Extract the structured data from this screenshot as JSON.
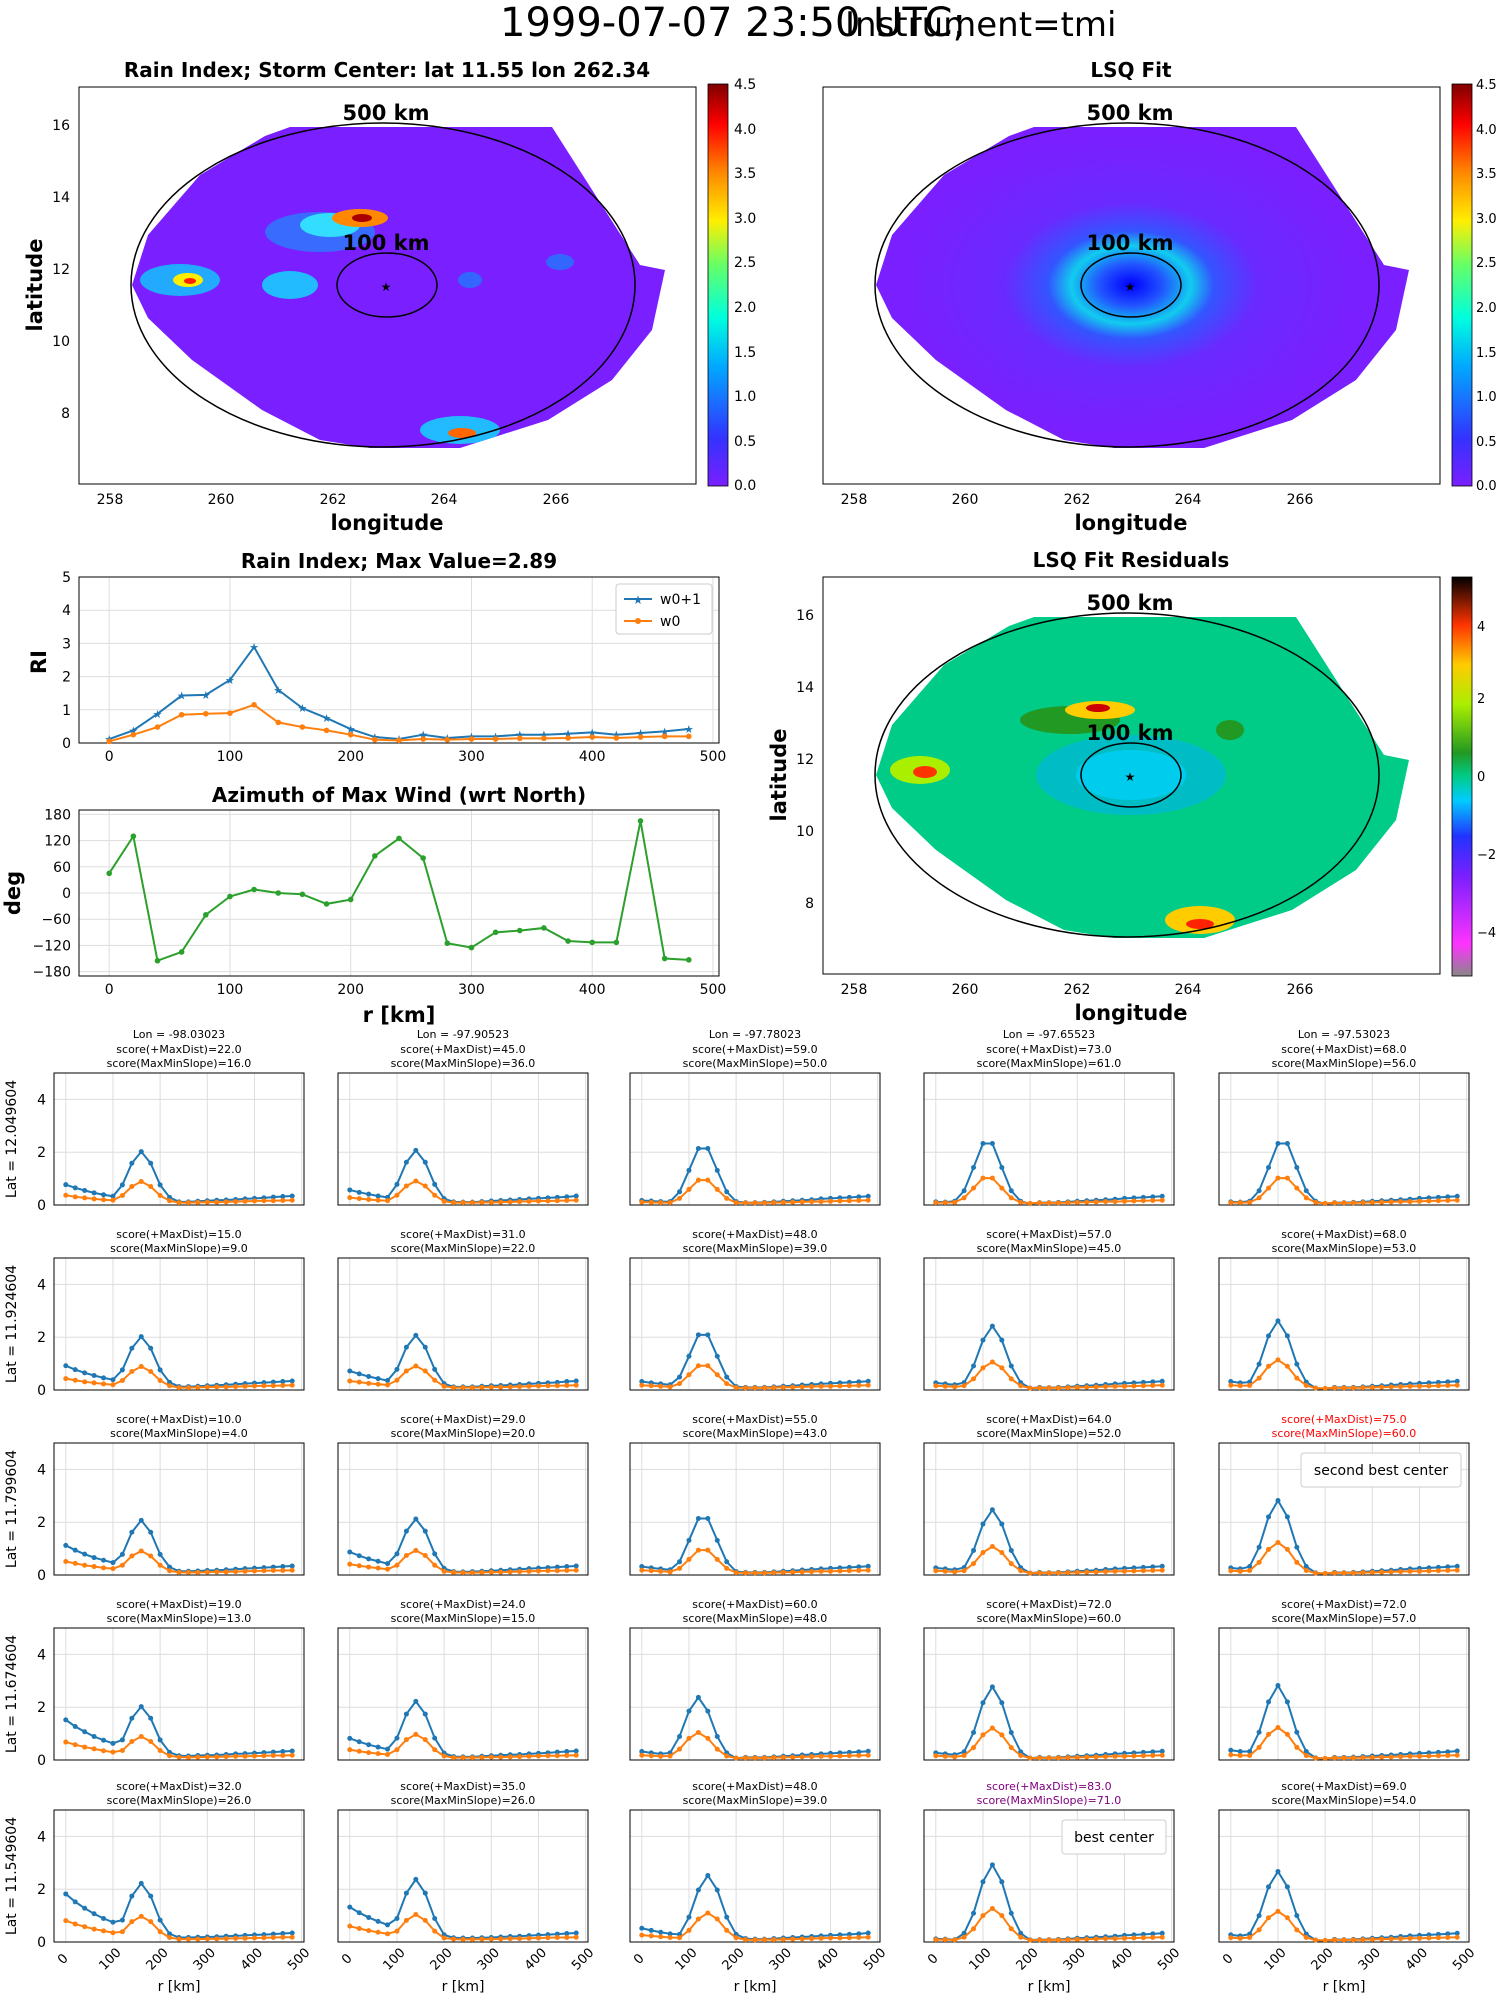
{
  "title_main": "1999-07-07 23:50 UTC;",
  "title_instrument": "Instrument=tmi",
  "colors": {
    "w0p1": "#1f77b4",
    "w0": "#ff7f0e",
    "azimuth": "#2ca02c",
    "highlight_red": "#ff0000",
    "highlight_purple": "#800080",
    "field": "#7a1fff",
    "ring": "#000000"
  },
  "maps": {
    "rain": {
      "title": "Rain Index; Storm Center: lat 11.55 lon 262.34",
      "xlabel": "longitude",
      "ylabel": "latitude",
      "xticks": [
        "258",
        "260",
        "262",
        "264",
        "266"
      ],
      "yticks": [
        "8",
        "10",
        "12",
        "14",
        "16"
      ],
      "ring_labels": [
        "500 km",
        "100 km"
      ],
      "colorbar_ticks": [
        "0.0",
        "0.5",
        "1.0",
        "1.5",
        "2.0",
        "2.5",
        "3.0",
        "3.5",
        "4.0",
        "4.5"
      ]
    },
    "lsq": {
      "title": "LSQ Fit",
      "xlabel": "longitude",
      "xticks": [
        "258",
        "260",
        "262",
        "264",
        "266"
      ],
      "ring_labels": [
        "500 km",
        "100 km"
      ],
      "colorbar_ticks": [
        "0.0",
        "0.5",
        "1.0",
        "1.5",
        "2.0",
        "2.5",
        "3.0",
        "3.5",
        "4.0",
        "4.5"
      ]
    },
    "resid": {
      "title": "LSQ Fit Residuals",
      "xlabel": "longitude",
      "ylabel": "latitude",
      "xticks": [
        "258",
        "260",
        "262",
        "264",
        "266"
      ],
      "yticks": [
        "8",
        "10",
        "12",
        "14",
        "16"
      ],
      "ring_labels": [
        "500 km",
        "100 km"
      ],
      "colorbar_ticks": [
        "4",
        "2",
        "0",
        "−2",
        "−4"
      ]
    }
  },
  "chart_data": [
    {
      "type": "line",
      "title": "Rain Index; Max Value=2.89",
      "ylabel": "RI",
      "xlim": [
        -25,
        505
      ],
      "ylim": [
        0,
        5
      ],
      "xticks": [
        "0",
        "100",
        "200",
        "300",
        "400",
        "500"
      ],
      "yticks": [
        "0",
        "1",
        "2",
        "3",
        "4",
        "5"
      ],
      "legend": "top-right",
      "x": [
        0,
        20,
        40,
        60,
        80,
        100,
        120,
        140,
        160,
        180,
        200,
        220,
        240,
        260,
        280,
        300,
        320,
        340,
        360,
        380,
        400,
        420,
        440,
        460,
        480
      ],
      "series": [
        {
          "name": "w0+1",
          "values": [
            0.12,
            0.38,
            0.88,
            1.43,
            1.45,
            1.9,
            2.89,
            1.6,
            1.05,
            0.75,
            0.42,
            0.18,
            0.12,
            0.25,
            0.15,
            0.2,
            0.2,
            0.25,
            0.25,
            0.28,
            0.32,
            0.25,
            0.3,
            0.35,
            0.42
          ]
        },
        {
          "name": "w0",
          "values": [
            0.05,
            0.25,
            0.48,
            0.85,
            0.88,
            0.9,
            1.15,
            0.62,
            0.48,
            0.38,
            0.25,
            0.1,
            0.08,
            0.12,
            0.1,
            0.12,
            0.12,
            0.14,
            0.14,
            0.15,
            0.18,
            0.15,
            0.18,
            0.2,
            0.2
          ]
        }
      ]
    },
    {
      "type": "line",
      "title": "Azimuth of Max Wind (wrt North)",
      "xlabel": "r [km]",
      "ylabel": "deg",
      "xlim": [
        -25,
        505
      ],
      "ylim": [
        -190,
        190
      ],
      "xticks": [
        "0",
        "100",
        "200",
        "300",
        "400",
        "500"
      ],
      "yticks": [
        "180",
        "120",
        "60",
        "0",
        "−60",
        "−120",
        "−180"
      ],
      "x": [
        0,
        20,
        40,
        60,
        80,
        100,
        120,
        140,
        160,
        180,
        200,
        220,
        240,
        260,
        280,
        300,
        320,
        340,
        360,
        380,
        400,
        420,
        440,
        460,
        480
      ],
      "values": [
        45,
        130,
        -155,
        -135,
        -50,
        -8,
        8,
        0,
        -3,
        -25,
        -15,
        85,
        125,
        80,
        -115,
        -125,
        -90,
        -86,
        -80,
        -110,
        -113,
        -113,
        165,
        -150,
        -153
      ]
    },
    {
      "type": "line",
      "grid": "5x5 small multiples",
      "xlabel": "r [km]",
      "xticks": [
        "0",
        "100",
        "200",
        "300",
        "400",
        "500"
      ],
      "yticks": [
        "0",
        "2",
        "4"
      ],
      "ylim": [
        0,
        5
      ],
      "columns_lon": [
        "Lon = -98.03023",
        "Lon = -97.90523",
        "Lon = -97.78023",
        "Lon = -97.65523",
        "Lon = -97.53023"
      ],
      "rows_lat": [
        "Lat = 12.049604",
        "Lat = 11.924604",
        "Lat = 11.799604",
        "Lat = 11.674604",
        "Lat = 11.549604"
      ],
      "x": [
        0,
        20,
        40,
        60,
        80,
        100,
        120,
        140,
        160,
        180,
        200,
        220,
        240,
        260,
        280,
        300,
        320,
        340,
        360,
        380,
        400,
        420,
        440,
        460,
        480
      ],
      "panels": [
        [
          {
            "s1": "score(+MaxDist)=22.0",
            "s2": "score(MaxMinSlope)=16.0",
            "peak": 2.0,
            "pos": 160,
            "base": 0.75
          },
          {
            "s1": "score(+MaxDist)=45.0",
            "s2": "score(MaxMinSlope)=36.0",
            "peak": 2.05,
            "pos": 140,
            "base": 0.55
          },
          {
            "s1": "score(+MaxDist)=59.0",
            "s2": "score(MaxMinSlope)=50.0",
            "peak": 2.25,
            "pos": 130,
            "base": 0.15
          },
          {
            "s1": "score(+MaxDist)=73.0",
            "s2": "score(MaxMinSlope)=61.0",
            "peak": 2.45,
            "pos": 110,
            "base": 0.1
          },
          {
            "s1": "score(+MaxDist)=68.0",
            "s2": "score(MaxMinSlope)=56.0",
            "peak": 2.45,
            "pos": 110,
            "base": 0.1
          }
        ],
        [
          {
            "s1": "score(+MaxDist)=15.0",
            "s2": "score(MaxMinSlope)=9.0",
            "peak": 2.0,
            "pos": 160,
            "base": 0.9
          },
          {
            "s1": "score(+MaxDist)=31.0",
            "s2": "score(MaxMinSlope)=22.0",
            "peak": 2.05,
            "pos": 140,
            "base": 0.7
          },
          {
            "s1": "score(+MaxDist)=48.0",
            "s2": "score(MaxMinSlope)=39.0",
            "peak": 2.2,
            "pos": 130,
            "base": 0.3
          },
          {
            "s1": "score(+MaxDist)=57.0",
            "s2": "score(MaxMinSlope)=45.0",
            "peak": 2.4,
            "pos": 120,
            "base": 0.25
          },
          {
            "s1": "score(+MaxDist)=68.0",
            "s2": "score(MaxMinSlope)=53.0",
            "peak": 2.6,
            "pos": 100,
            "base": 0.3
          }
        ],
        [
          {
            "s1": "score(+MaxDist)=10.0",
            "s2": "score(MaxMinSlope)=4.0",
            "peak": 2.05,
            "pos": 160,
            "base": 1.1
          },
          {
            "s1": "score(+MaxDist)=29.0",
            "s2": "score(MaxMinSlope)=20.0",
            "peak": 2.1,
            "pos": 140,
            "base": 0.85
          },
          {
            "s1": "score(+MaxDist)=55.0",
            "s2": "score(MaxMinSlope)=43.0",
            "peak": 2.25,
            "pos": 130,
            "base": 0.3
          },
          {
            "s1": "score(+MaxDist)=64.0",
            "s2": "score(MaxMinSlope)=52.0",
            "peak": 2.45,
            "pos": 120,
            "base": 0.25
          },
          {
            "s1": "score(+MaxDist)=75.0",
            "s2": "score(MaxMinSlope)=60.0",
            "peak": 2.8,
            "pos": 100,
            "base": 0.25,
            "highlight": "red",
            "label": "second best center"
          }
        ],
        [
          {
            "s1": "score(+MaxDist)=19.0",
            "s2": "score(MaxMinSlope)=13.0",
            "peak": 2.0,
            "pos": 160,
            "base": 1.5
          },
          {
            "s1": "score(+MaxDist)=24.0",
            "s2": "score(MaxMinSlope)=15.0",
            "peak": 2.2,
            "pos": 140,
            "base": 0.8
          },
          {
            "s1": "score(+MaxDist)=60.0",
            "s2": "score(MaxMinSlope)=48.0",
            "peak": 2.35,
            "pos": 120,
            "base": 0.3
          },
          {
            "s1": "score(+MaxDist)=72.0",
            "s2": "score(MaxMinSlope)=60.0",
            "peak": 2.75,
            "pos": 120,
            "base": 0.25
          },
          {
            "s1": "score(+MaxDist)=72.0",
            "s2": "score(MaxMinSlope)=57.0",
            "peak": 2.8,
            "pos": 100,
            "base": 0.35
          }
        ],
        [
          {
            "s1": "score(+MaxDist)=32.0",
            "s2": "score(MaxMinSlope)=26.0",
            "peak": 2.2,
            "pos": 160,
            "base": 1.8
          },
          {
            "s1": "score(+MaxDist)=35.0",
            "s2": "score(MaxMinSlope)=26.0",
            "peak": 2.35,
            "pos": 140,
            "base": 1.3
          },
          {
            "s1": "score(+MaxDist)=48.0",
            "s2": "score(MaxMinSlope)=39.0",
            "peak": 2.5,
            "pos": 140,
            "base": 0.5
          },
          {
            "s1": "score(+MaxDist)=83.0",
            "s2": "score(MaxMinSlope)=71.0",
            "peak": 2.9,
            "pos": 120,
            "base": 0.1,
            "highlight": "purple",
            "label": "best center"
          },
          {
            "s1": "score(+MaxDist)=69.0",
            "s2": "score(MaxMinSlope)=54.0",
            "peak": 2.65,
            "pos": 100,
            "base": 0.25
          }
        ]
      ]
    }
  ]
}
